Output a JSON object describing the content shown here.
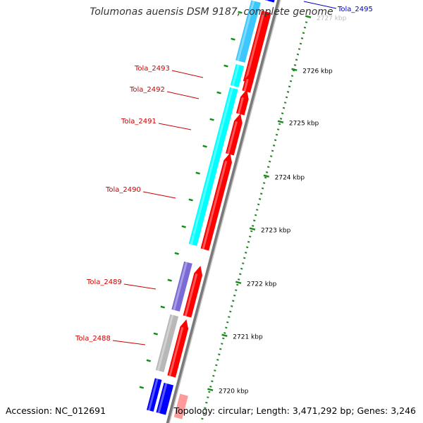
{
  "title": "Tolumonas auensis DSM 9187, complete genome",
  "accession_label": "Accession:",
  "accession": "NC_012691",
  "summary": {
    "topology_label": "Topology:",
    "topology": "circular",
    "length_label": "Length:",
    "length": "3,471,292 bp",
    "genes_label": "Genes:",
    "genes": "3,246"
  },
  "ticks": [
    "2720 kbp",
    "2721 kbp",
    "2722 kbp",
    "2723 kbp",
    "2724 kbp",
    "2725 kbp",
    "2726 kbp",
    "2727 kbp"
  ],
  "genes": [
    {
      "label": "Tola_2488",
      "color": "#cc0000"
    },
    {
      "label": "Tola_2489",
      "color": "#cc0000"
    },
    {
      "label": "Tola_2490",
      "color": "#cc0000"
    },
    {
      "label": "Tola_2491",
      "color": "#cc0000"
    },
    {
      "label": "Tola_2492",
      "color": "#cc0000"
    },
    {
      "label": "Tola_2493",
      "color": "#cc0000"
    },
    {
      "label": "Tola_2495",
      "color": "#0000cc"
    }
  ],
  "colors": {
    "forward_gene": "#ff0000",
    "reverse_gene": "#0000ff",
    "cog_cyan": "#00ffff",
    "cog_purple": "#7a6ad6",
    "cog_grey": "#b8b8b8",
    "cog_light_blue": "#3cc8ff",
    "backbone": "#7a7a7a",
    "tick": "#1a8a1a",
    "tick_label": "#000000"
  }
}
